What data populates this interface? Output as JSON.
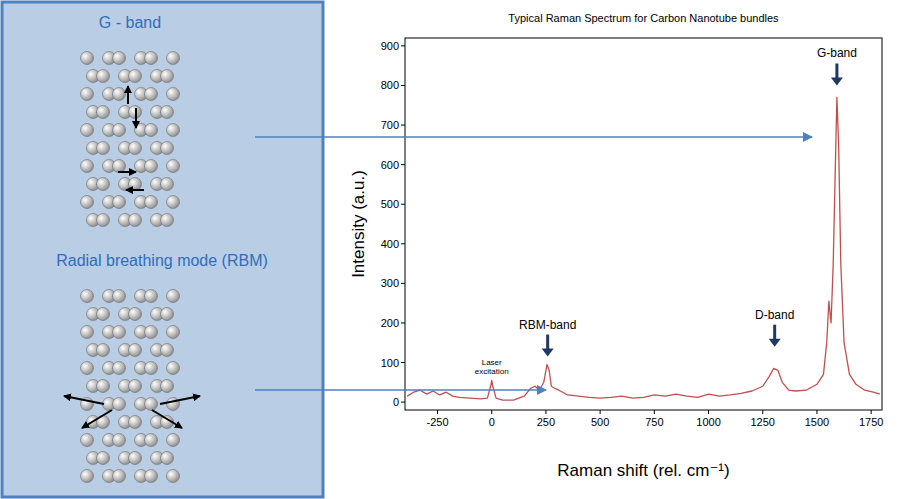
{
  "diagram": {
    "g_band_title": "G - band",
    "rbm_title": "Radial breathing mode (RBM)"
  },
  "chart_data": {
    "type": "line",
    "title": "Typical Raman Spectrum for Carbon Nanotube bundles",
    "x_label": "Raman shift (rel. cm⁻¹)",
    "y_label": "Intensity (a.u.)",
    "color": "#c0504d",
    "xlim": [
      -400,
      1800
    ],
    "ylim": [
      -20,
      920
    ],
    "xticks": [
      -250,
      0,
      250,
      500,
      750,
      1000,
      1250,
      1500,
      1750
    ],
    "yticks": [
      0,
      100,
      200,
      300,
      400,
      500,
      600,
      700,
      800,
      900
    ],
    "grid": false,
    "x": [
      -390,
      -360,
      -330,
      -300,
      -270,
      -240,
      -210,
      -180,
      -150,
      -100,
      -50,
      -20,
      -5,
      0,
      5,
      20,
      50,
      100,
      150,
      180,
      200,
      220,
      240,
      255,
      265,
      275,
      290,
      310,
      350,
      400,
      450,
      500,
      550,
      600,
      650,
      700,
      750,
      800,
      850,
      900,
      950,
      1000,
      1050,
      1100,
      1150,
      1200,
      1250,
      1280,
      1300,
      1320,
      1340,
      1370,
      1400,
      1450,
      1500,
      1530,
      1545,
      1555,
      1565,
      1575,
      1585,
      1592,
      1600,
      1610,
      1625,
      1650,
      1680,
      1720,
      1760,
      1790
    ],
    "values": [
      15,
      25,
      30,
      20,
      28,
      18,
      25,
      15,
      12,
      10,
      8,
      10,
      40,
      55,
      40,
      10,
      5,
      5,
      15,
      35,
      40,
      30,
      50,
      95,
      80,
      40,
      35,
      30,
      18,
      15,
      12,
      10,
      12,
      15,
      10,
      12,
      18,
      15,
      20,
      15,
      12,
      20,
      15,
      18,
      22,
      28,
      40,
      65,
      85,
      80,
      50,
      30,
      28,
      30,
      45,
      70,
      150,
      255,
      200,
      350,
      600,
      770,
      650,
      350,
      150,
      70,
      45,
      30,
      25,
      20
    ],
    "annotations": [
      {
        "text": "Laser excitation",
        "x": 0,
        "y": 60,
        "marker": "none"
      },
      {
        "text": "RBM-band",
        "x": 258,
        "y": 115,
        "marker": "arrow"
      },
      {
        "text": "D-band",
        "x": 1305,
        "y": 140,
        "marker": "arrow"
      },
      {
        "text": "G-band",
        "x": 1592,
        "y": 800,
        "marker": "arrow"
      }
    ]
  }
}
